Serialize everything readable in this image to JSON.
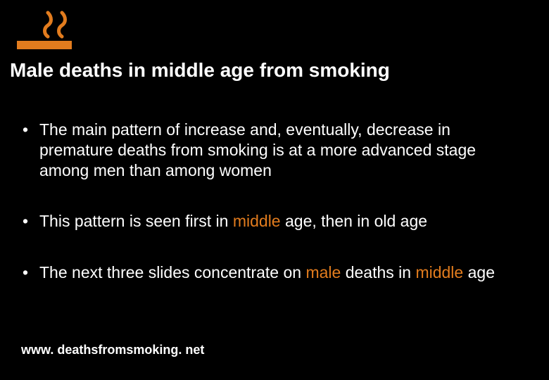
{
  "colors": {
    "background": "#000000",
    "text": "#ffffff",
    "accent": "#e27c1e"
  },
  "logo": {
    "icon_name": "cigarette-icon",
    "color": "#e27c1e"
  },
  "title": "Male deaths in middle age from smoking",
  "bullets": [
    {
      "segments": [
        {
          "t": "The main pattern of increase and, eventually, decrease in premature deaths from smoking is at a more advanced stage among men than among women",
          "hl": false
        }
      ]
    },
    {
      "segments": [
        {
          "t": "This pattern is seen first in ",
          "hl": false
        },
        {
          "t": "middle",
          "hl": true
        },
        {
          "t": " age, then in old age",
          "hl": false
        }
      ]
    },
    {
      "segments": [
        {
          "t": "The next three slides concentrate on ",
          "hl": false
        },
        {
          "t": "male",
          "hl": true
        },
        {
          "t": " deaths in ",
          "hl": false
        },
        {
          "t": "middle",
          "hl": true
        },
        {
          "t": " age",
          "hl": false
        }
      ]
    }
  ],
  "footer": "www. deathsfromsmoking. net",
  "typography": {
    "title_fontsize": 28,
    "bullet_fontsize": 23,
    "footer_fontsize": 18,
    "font_family": "Arial"
  }
}
